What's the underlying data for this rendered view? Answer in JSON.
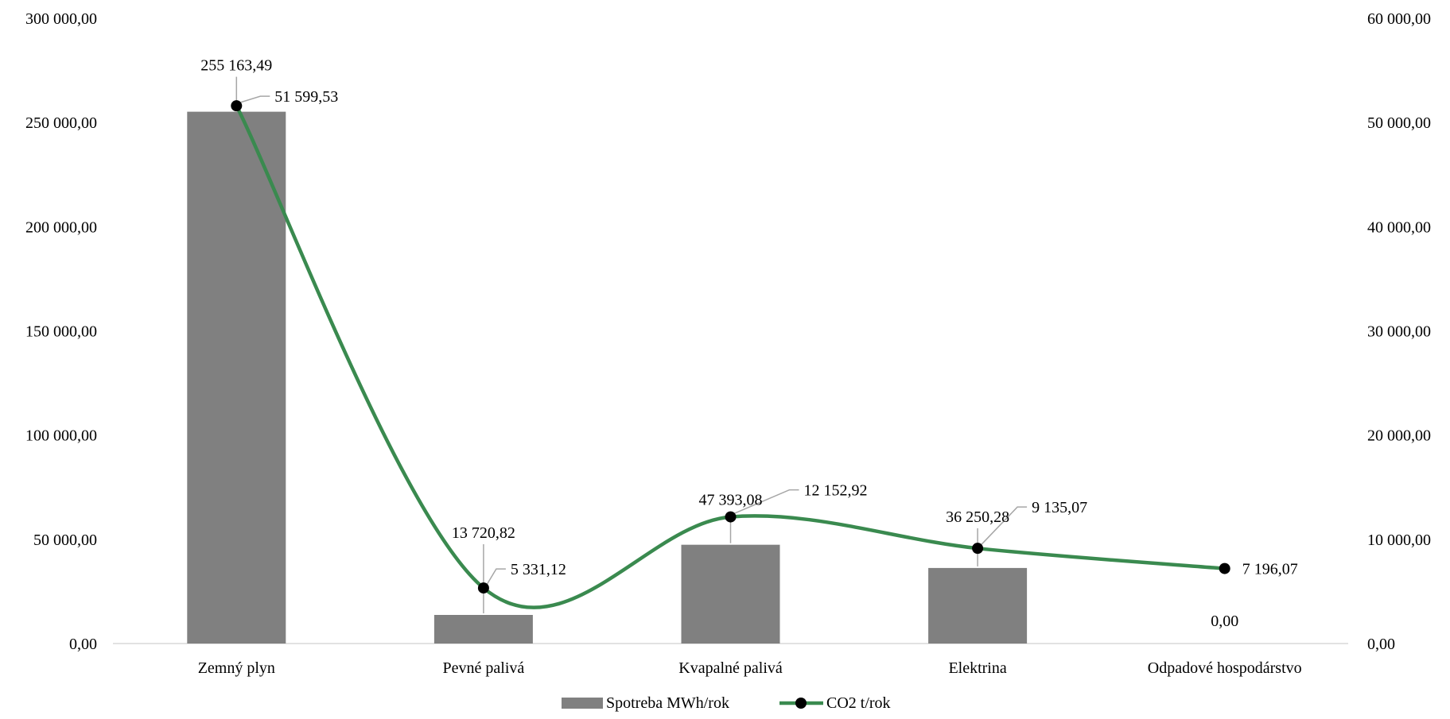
{
  "chart_data": {
    "type": "bar",
    "categories": [
      "Zemný plyn",
      "Pevné palivá",
      "Kvapalné palivá",
      "Elektrina",
      "Odpadové hospodárstvo"
    ],
    "series": [
      {
        "name": "Spotreba MWh/rok",
        "type": "bar",
        "axis": "left",
        "color": "#808080",
        "values": [
          255163.49,
          13720.82,
          47393.08,
          36250.28,
          0.0
        ],
        "labels": [
          "255 163,49",
          "13 720,82",
          "47 393,08",
          "36 250,28",
          "0,00"
        ]
      },
      {
        "name": "CO2 t/rok",
        "type": "line",
        "smooth": true,
        "axis": "right",
        "color": "#3a8a4f",
        "marker_color": "#000000",
        "values": [
          51599.53,
          5331.12,
          12152.92,
          9135.07,
          7196.07
        ],
        "labels": [
          "51 599,53",
          "5 331,12",
          "12 152,92",
          "9 135,07",
          "7 196,07"
        ]
      }
    ],
    "left_axis": {
      "ylim": [
        0,
        300000
      ],
      "ticks": [
        0,
        50000,
        100000,
        150000,
        200000,
        250000,
        300000
      ],
      "tick_labels": [
        "0,00",
        "50 000,00",
        "100 000,00",
        "150 000,00",
        "200 000,00",
        "250 000,00",
        "300 000,00"
      ]
    },
    "right_axis": {
      "ylim": [
        0,
        60000
      ],
      "ticks": [
        0,
        10000,
        20000,
        30000,
        40000,
        50000,
        60000
      ],
      "tick_labels": [
        "0,00",
        "10 000,00",
        "20 000,00",
        "30 000,00",
        "40 000,00",
        "50 000,00",
        "60 000,00"
      ]
    },
    "grid": false,
    "legend": "bottom"
  }
}
